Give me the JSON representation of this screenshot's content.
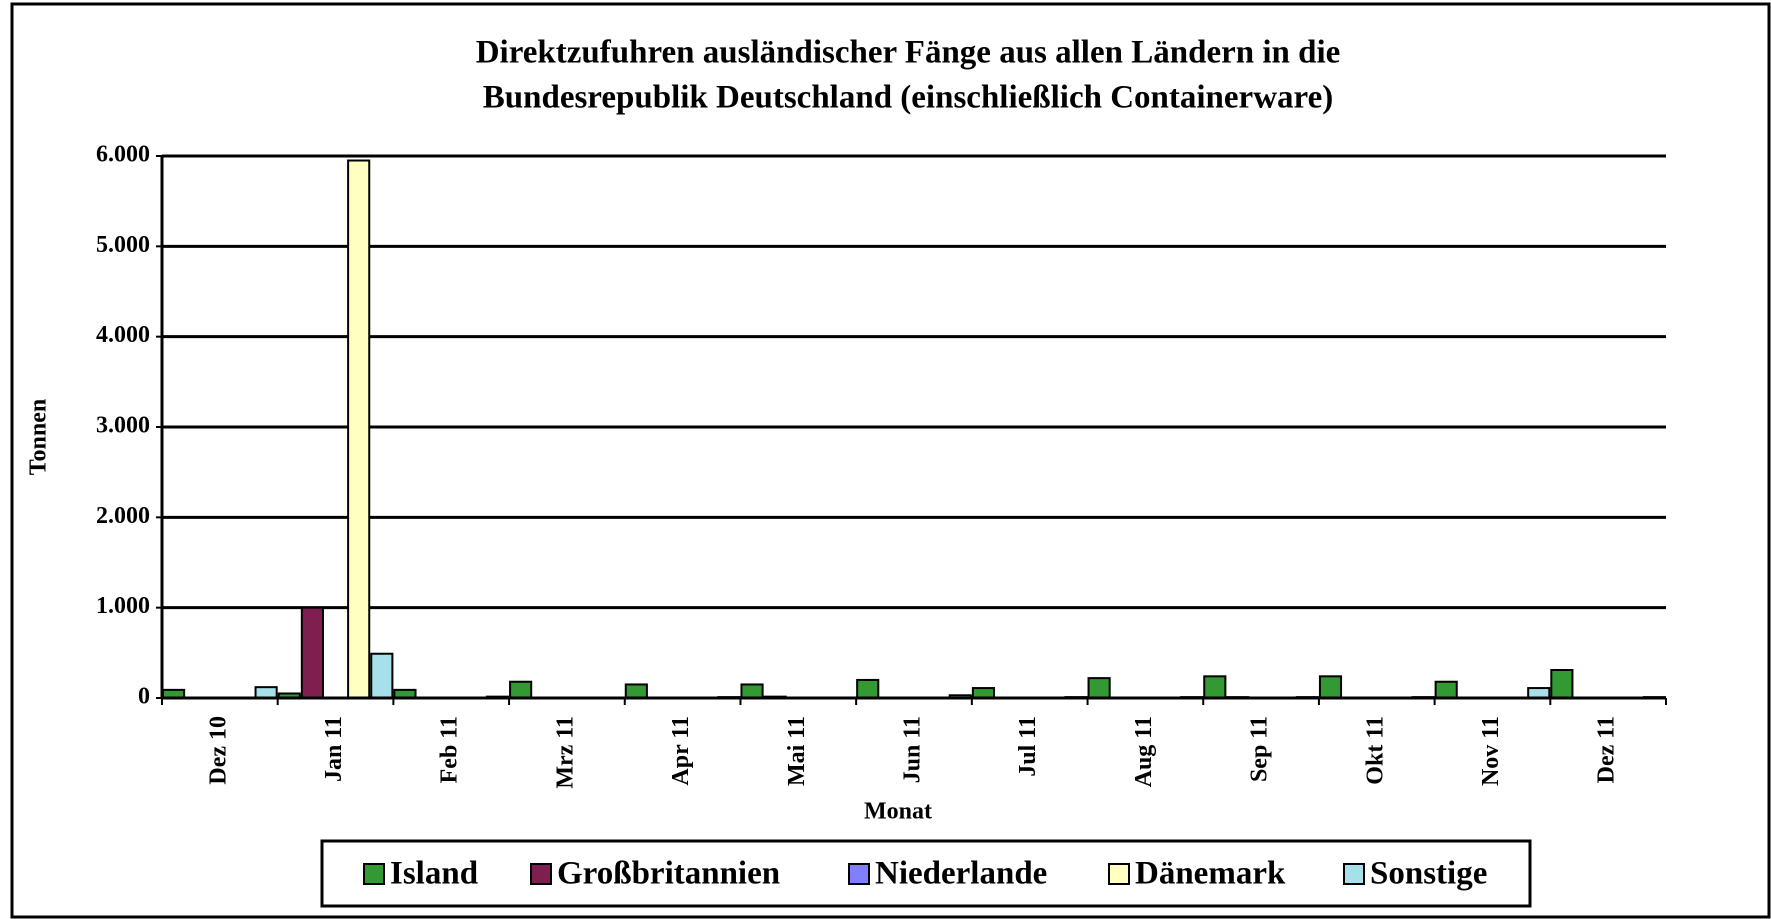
{
  "chart_data": {
    "type": "bar",
    "title": [
      "Direktzufuhren ausländischer Fänge aus allen Ländern in die",
      "Bundesrepublik Deutschland (einschließlich Containerware)"
    ],
    "x_label": "Monat",
    "y_label": "Tonnen",
    "categories": [
      "Dez 10",
      "Jan 11",
      "Feb 11",
      "Mrz 11",
      "Apr 11",
      "Mai 11",
      "Jun 11",
      "Jul 11",
      "Aug 11",
      "Sep 11",
      "Okt 11",
      "Nov 11",
      "Dez 11"
    ],
    "series": [
      {
        "name": "Island",
        "color": "#339933",
        "values": [
          90,
          50,
          90,
          180,
          150,
          150,
          200,
          110,
          220,
          240,
          240,
          180,
          310
        ]
      },
      {
        "name": "Großbritannien",
        "color": "#7f1f4f",
        "values": [
          0,
          1000,
          0,
          0,
          0,
          15,
          0,
          0,
          0,
          10,
          0,
          0,
          0
        ]
      },
      {
        "name": "Niederlande",
        "color": "#8080ff",
        "values": [
          0,
          0,
          0,
          0,
          0,
          0,
          0,
          0,
          0,
          0,
          0,
          0,
          0
        ]
      },
      {
        "name": "Dänemark",
        "color": "#ffffc0",
        "values": [
          0,
          5950,
          0,
          0,
          0,
          0,
          0,
          0,
          0,
          0,
          0,
          0,
          0
        ]
      },
      {
        "name": "Sonstige",
        "color": "#a6e0e8",
        "values": [
          120,
          490,
          15,
          0,
          10,
          0,
          30,
          10,
          10,
          10,
          10,
          110,
          10
        ]
      }
    ],
    "ylim": [
      0,
      6000
    ],
    "yticks": [
      0,
      {
        "value": 1000,
        "label": "1.000"
      },
      {
        "value": 2000,
        "label": "2.000"
      },
      {
        "value": 3000,
        "label": "3.000"
      },
      {
        "value": 4000,
        "label": "4.000"
      },
      {
        "value": 5000,
        "label": "5.000"
      },
      {
        "value": 6000,
        "label": "6.000"
      }
    ],
    "grid": true,
    "legend": "bottom"
  }
}
